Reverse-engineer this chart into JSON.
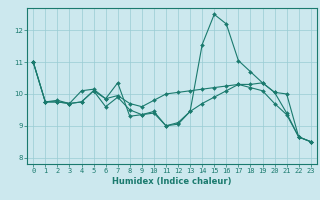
{
  "xlabel": "Humidex (Indice chaleur)",
  "ylabel": "",
  "bg_color": "#cce8ee",
  "line_color": "#1a7a6e",
  "grid_color": "#99ccd4",
  "xlim": [
    -0.5,
    23.5
  ],
  "ylim": [
    7.8,
    12.7
  ],
  "yticks": [
    8,
    9,
    10,
    11,
    12
  ],
  "xticks": [
    0,
    1,
    2,
    3,
    4,
    5,
    6,
    7,
    8,
    9,
    10,
    11,
    12,
    13,
    14,
    15,
    16,
    17,
    18,
    19,
    20,
    21,
    22,
    23
  ],
  "series1_x": [
    0,
    1,
    2,
    3,
    4,
    5,
    6,
    7,
    8,
    9,
    10,
    11,
    12,
    13,
    14,
    15,
    16,
    17,
    18,
    19,
    20,
    21,
    22,
    23
  ],
  "series1_y": [
    11.0,
    9.75,
    9.8,
    9.7,
    10.1,
    10.15,
    9.85,
    10.35,
    9.3,
    9.35,
    9.45,
    9.0,
    9.1,
    9.45,
    11.55,
    12.5,
    12.2,
    11.05,
    10.7,
    10.35,
    10.05,
    9.4,
    8.65,
    8.5
  ],
  "series2_x": [
    0,
    1,
    2,
    3,
    4,
    5,
    6,
    7,
    8,
    9,
    10,
    11,
    12,
    13,
    14,
    15,
    16,
    17,
    18,
    19,
    20,
    21,
    22,
    23
  ],
  "series2_y": [
    11.0,
    9.75,
    9.75,
    9.7,
    9.75,
    10.1,
    9.85,
    9.95,
    9.7,
    9.6,
    9.8,
    10.0,
    10.05,
    10.1,
    10.15,
    10.2,
    10.25,
    10.3,
    10.3,
    10.35,
    10.05,
    10.0,
    8.65,
    8.5
  ],
  "series3_x": [
    0,
    1,
    2,
    3,
    4,
    5,
    6,
    7,
    8,
    9,
    10,
    11,
    12,
    13,
    14,
    15,
    16,
    17,
    18,
    19,
    20,
    21,
    22,
    23
  ],
  "series3_y": [
    11.0,
    9.75,
    9.75,
    9.7,
    9.75,
    10.1,
    9.6,
    9.9,
    9.5,
    9.35,
    9.4,
    9.0,
    9.05,
    9.45,
    9.7,
    9.9,
    10.1,
    10.3,
    10.2,
    10.1,
    9.7,
    9.35,
    8.65,
    8.5
  ],
  "xlabel_fontsize": 6.0,
  "tick_fontsize": 5.0
}
